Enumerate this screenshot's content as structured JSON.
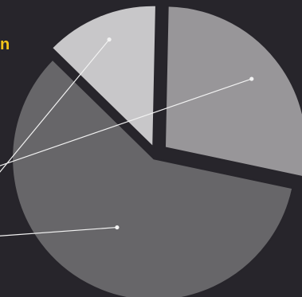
{
  "heading_fragment": "n",
  "colors": {
    "background": "#27252b",
    "heading": "#f4c51a",
    "leader_line": "#f2f2f2"
  },
  "chart_data": {
    "type": "pie",
    "exploded": true,
    "start_angle_deg": -12,
    "direction": "counterclockwise",
    "slices": [
      {
        "value": 28,
        "color": "#989699"
      },
      {
        "value": 13,
        "color": "#c8c7c9"
      },
      {
        "value": 59,
        "color": "#676669"
      }
    ]
  }
}
